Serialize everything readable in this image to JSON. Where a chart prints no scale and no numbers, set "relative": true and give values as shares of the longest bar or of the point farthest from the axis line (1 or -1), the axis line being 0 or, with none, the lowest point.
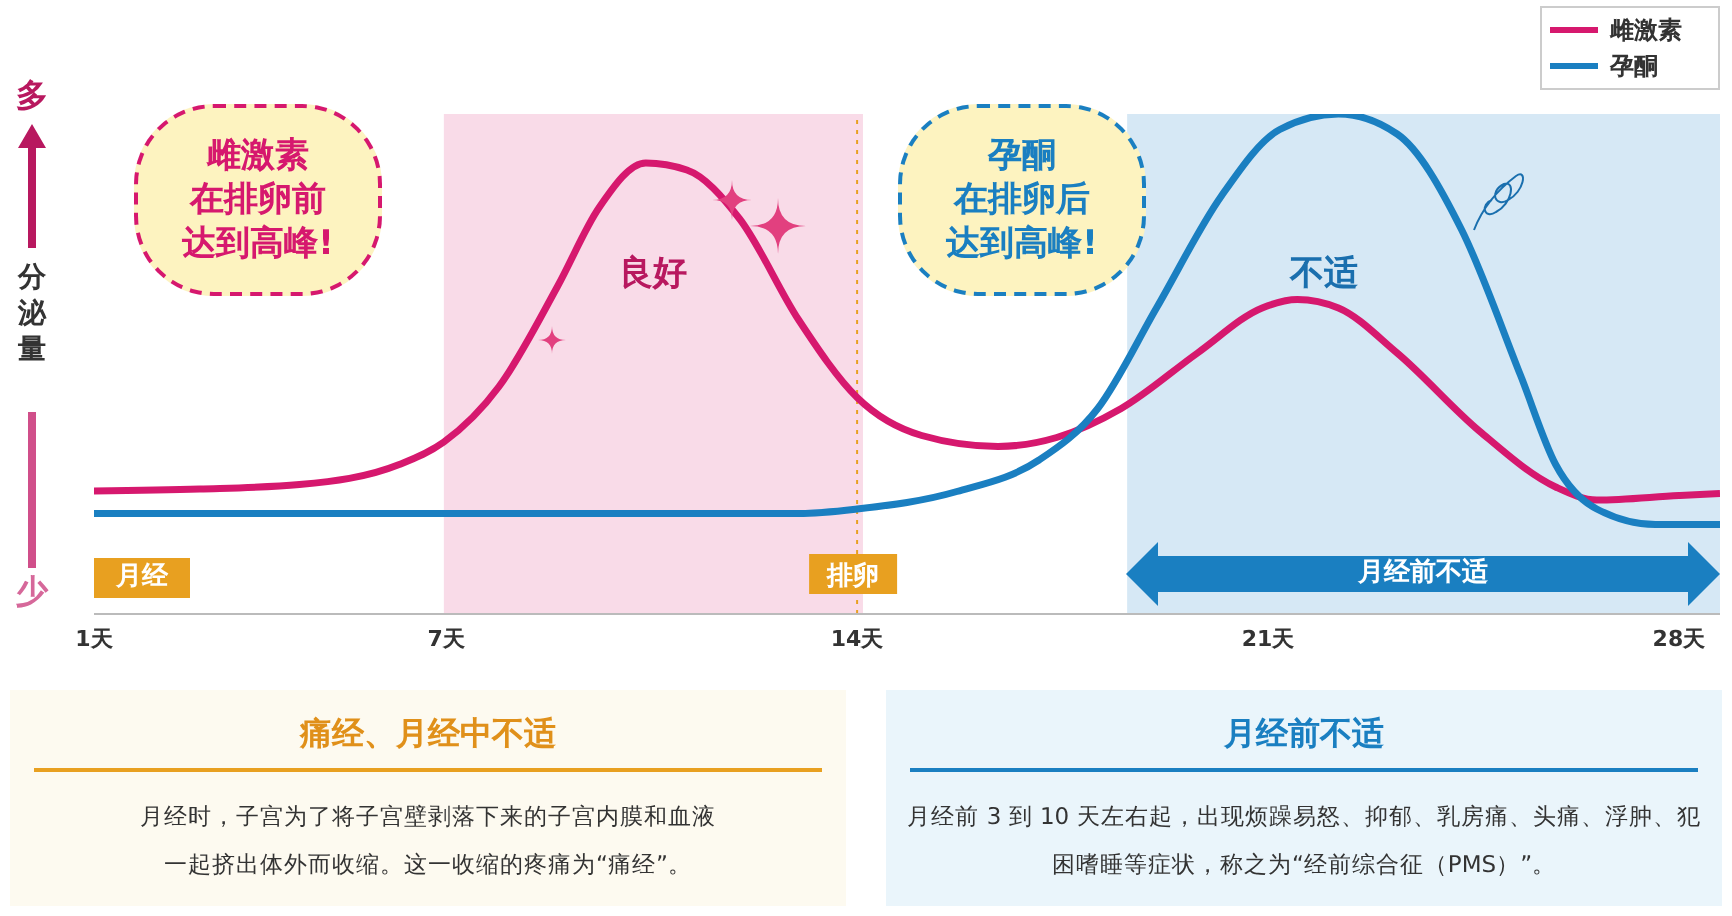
{
  "chart_data": {
    "type": "line",
    "relative": true,
    "ylabel": "分泌量",
    "xlim": [
      1,
      28.7
    ],
    "xticks": [
      {
        "value": 1,
        "label": "1天"
      },
      {
        "value": 7,
        "label": "7天"
      },
      {
        "value": 14,
        "label": "14天"
      },
      {
        "value": 21,
        "label": "21天"
      },
      {
        "value": 28,
        "label": "28天"
      }
    ],
    "series": [
      {
        "name": "雌激素",
        "color": "#d6186e",
        "x": [
          1,
          2.8,
          4.5,
          6.2,
          6.96,
          7.9,
          8.9,
          9.6,
          10.4,
          11.1,
          12,
          13,
          14,
          15.1,
          16.4,
          17.4,
          18.5,
          19.8,
          20.9,
          21.5,
          22.2,
          23.2,
          24.6,
          25.9,
          26.6,
          28,
          28.7
        ],
        "values": [
          0.246,
          0.25,
          0.259,
          0.299,
          0.344,
          0.455,
          0.656,
          0.812,
          0.902,
          0.888,
          0.79,
          0.589,
          0.433,
          0.357,
          0.335,
          0.353,
          0.411,
          0.522,
          0.612,
          0.629,
          0.612,
          0.522,
          0.366,
          0.254,
          0.228,
          0.237,
          0.241
        ]
      },
      {
        "name": "孕酮",
        "color": "#1a7fc1",
        "x": [
          1,
          6.2,
          13,
          14,
          15.7,
          17.1,
          18.1,
          19.1,
          20.2,
          21.2,
          22.2,
          23.2,
          24.3,
          25.3,
          25.9,
          26.6,
          27.6,
          28.7
        ],
        "values": [
          0.201,
          0.201,
          0.201,
          0.21,
          0.245,
          0.308,
          0.411,
          0.612,
          0.835,
          0.969,
          1,
          0.96,
          0.768,
          0.478,
          0.299,
          0.21,
          0.179,
          0.179
        ]
      }
    ],
    "bands": [
      {
        "axis": "x",
        "from": 6.96,
        "to": 14.1,
        "label": "良好",
        "color": "#f9dbe8"
      },
      {
        "axis": "x",
        "from": 18.6,
        "to": 28.7,
        "label": "不适",
        "color": "#d6e8f5"
      }
    ],
    "ref_lines": [
      {
        "axis": "x",
        "value": 14,
        "label": "排卵",
        "color": "#e8a020",
        "line_style": "dotted"
      }
    ],
    "legend": "top right",
    "line_style": "solid",
    "marker": "none",
    "grid": false,
    "annotations": [
      "雌激素在排卵前达到高峰!",
      "孕酮在排卵后达到高峰!",
      "月经",
      "月经前不适",
      "多",
      "少",
      "痛经、月经中不适",
      "月经时，子宫为了将子宫壁剥落下来的子宫内膜和血液一起挤出体外而收缩。这一收缩的疼痛为“痛经”。",
      "月经前不适",
      "月经前 3 到 10 天左右起，出现烦躁易怒、抑郁、乳房痛、头痛、浮肿、犯困嗜睡等症状，称之为“经前综合征（PMS）”。"
    ]
  }
}
